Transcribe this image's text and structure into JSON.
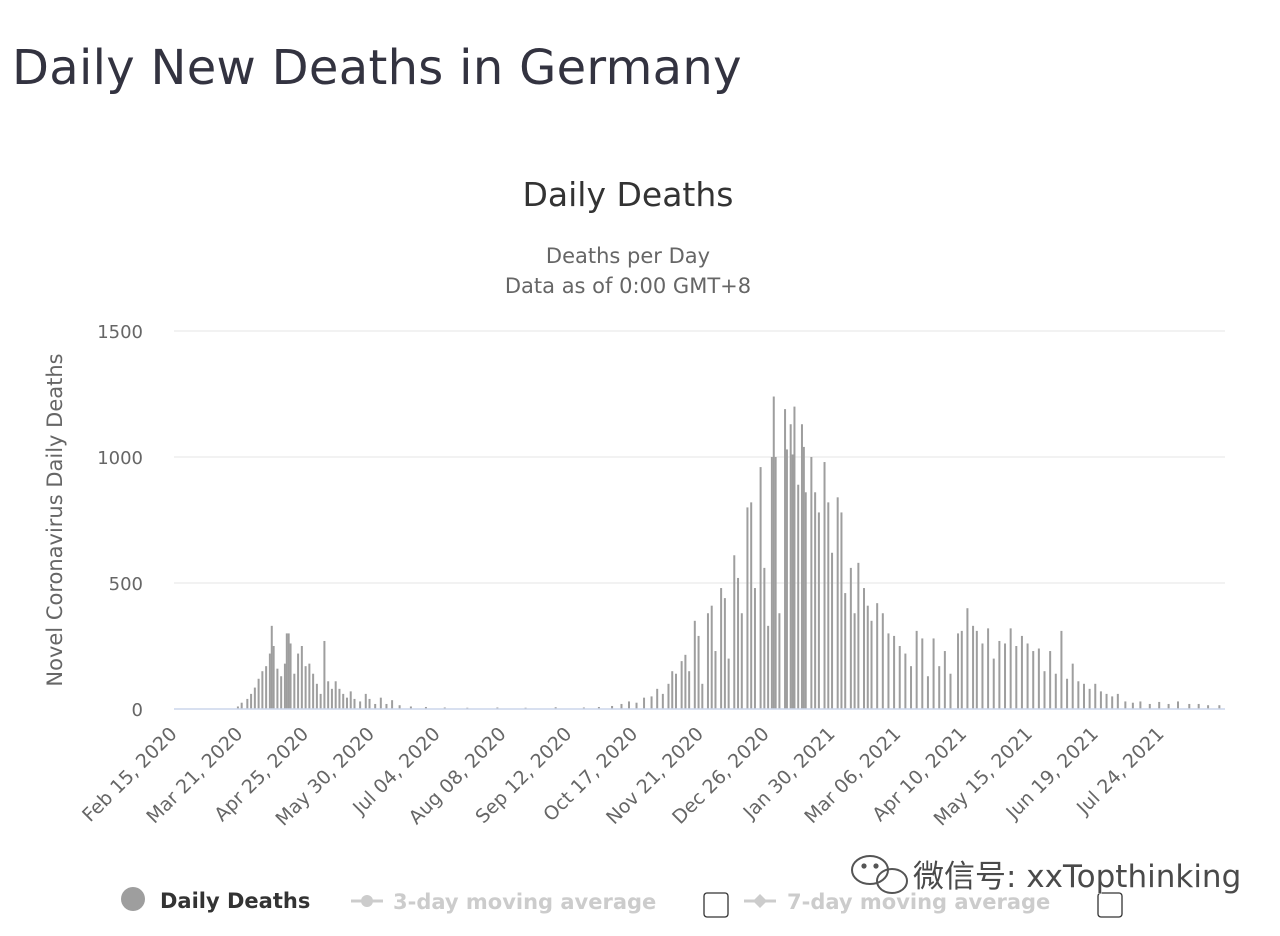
{
  "page": {
    "title": "Daily New Deaths in Germany"
  },
  "watermark": "微信号: xxTopthinking",
  "colors": {
    "bar": "#9e9e9e",
    "grid": "#e6e6e6",
    "axis": "#ccd6eb",
    "legend_inactive": "#cccccc",
    "legend_active": "#333333"
  },
  "chart_data": {
    "type": "bar",
    "title": "Daily Deaths",
    "subtitle_lines": [
      "Deaths per Day",
      "Data as of 0:00 GMT+8"
    ],
    "ylabel": "Novel Coronavirus Daily Deaths",
    "xlabel": "",
    "ylim": [
      0,
      1500
    ],
    "y_ticks": [
      "0",
      "500",
      "1000",
      "1500"
    ],
    "x_start": "2020-02-15",
    "x_end": "2021-08-27",
    "x_ticks": [
      "Feb 15, 2020",
      "Mar 21, 2020",
      "Apr 25, 2020",
      "May 30, 2020",
      "Jul 04, 2020",
      "Aug 08, 2020",
      "Sep 12, 2020",
      "Oct 17, 2020",
      "Nov 21, 2020",
      "Dec 26, 2020",
      "Jan 30, 2021",
      "Mar 06, 2021",
      "Apr 10, 2021",
      "May 15, 2021",
      "Jun 19, 2021",
      "Jul 24, 2021"
    ],
    "grid": true,
    "legend_position": "bottom-left",
    "series": [
      {
        "name": "Daily Deaths",
        "active": true,
        "points": [
          [
            "2020-03-20",
            10
          ],
          [
            "2020-03-22",
            25
          ],
          [
            "2020-03-25",
            40
          ],
          [
            "2020-03-27",
            60
          ],
          [
            "2020-03-29",
            85
          ],
          [
            "2020-03-31",
            120
          ],
          [
            "2020-04-02",
            150
          ],
          [
            "2020-04-04",
            170
          ],
          [
            "2020-04-06",
            220
          ],
          [
            "2020-04-07",
            330
          ],
          [
            "2020-04-08",
            250
          ],
          [
            "2020-04-10",
            160
          ],
          [
            "2020-04-12",
            130
          ],
          [
            "2020-04-14",
            180
          ],
          [
            "2020-04-15",
            300
          ],
          [
            "2020-04-16",
            300
          ],
          [
            "2020-04-17",
            260
          ],
          [
            "2020-04-19",
            140
          ],
          [
            "2020-04-21",
            220
          ],
          [
            "2020-04-23",
            250
          ],
          [
            "2020-04-25",
            170
          ],
          [
            "2020-04-27",
            180
          ],
          [
            "2020-04-29",
            140
          ],
          [
            "2020-05-01",
            100
          ],
          [
            "2020-05-03",
            60
          ],
          [
            "2020-05-05",
            270
          ],
          [
            "2020-05-07",
            110
          ],
          [
            "2020-05-09",
            80
          ],
          [
            "2020-05-11",
            110
          ],
          [
            "2020-05-13",
            80
          ],
          [
            "2020-05-15",
            60
          ],
          [
            "2020-05-17",
            45
          ],
          [
            "2020-05-19",
            70
          ],
          [
            "2020-05-21",
            40
          ],
          [
            "2020-05-24",
            30
          ],
          [
            "2020-05-27",
            60
          ],
          [
            "2020-05-29",
            40
          ],
          [
            "2020-06-01",
            20
          ],
          [
            "2020-06-04",
            45
          ],
          [
            "2020-06-07",
            20
          ],
          [
            "2020-06-10",
            35
          ],
          [
            "2020-06-14",
            15
          ],
          [
            "2020-06-20",
            10
          ],
          [
            "2020-06-28",
            8
          ],
          [
            "2020-07-08",
            6
          ],
          [
            "2020-07-20",
            5
          ],
          [
            "2020-08-05",
            6
          ],
          [
            "2020-08-20",
            5
          ],
          [
            "2020-09-05",
            7
          ],
          [
            "2020-09-20",
            6
          ],
          [
            "2020-09-28",
            8
          ],
          [
            "2020-10-05",
            12
          ],
          [
            "2020-10-10",
            20
          ],
          [
            "2020-10-14",
            30
          ],
          [
            "2020-10-18",
            25
          ],
          [
            "2020-10-22",
            45
          ],
          [
            "2020-10-26",
            50
          ],
          [
            "2020-10-29",
            80
          ],
          [
            "2020-11-01",
            60
          ],
          [
            "2020-11-04",
            100
          ],
          [
            "2020-11-06",
            150
          ],
          [
            "2020-11-08",
            140
          ],
          [
            "2020-11-11",
            190
          ],
          [
            "2020-11-13",
            215
          ],
          [
            "2020-11-15",
            150
          ],
          [
            "2020-11-18",
            350
          ],
          [
            "2020-11-20",
            290
          ],
          [
            "2020-11-22",
            100
          ],
          [
            "2020-11-25",
            380
          ],
          [
            "2020-11-27",
            410
          ],
          [
            "2020-11-29",
            230
          ],
          [
            "2020-12-02",
            480
          ],
          [
            "2020-12-04",
            440
          ],
          [
            "2020-12-06",
            200
          ],
          [
            "2020-12-09",
            610
          ],
          [
            "2020-12-11",
            520
          ],
          [
            "2020-12-13",
            380
          ],
          [
            "2020-12-16",
            800
          ],
          [
            "2020-12-18",
            820
          ],
          [
            "2020-12-20",
            480
          ],
          [
            "2020-12-23",
            960
          ],
          [
            "2020-12-25",
            560
          ],
          [
            "2020-12-27",
            330
          ],
          [
            "2020-12-29",
            1000
          ],
          [
            "2020-12-30",
            1240
          ],
          [
            "2020-12-31",
            1000
          ],
          [
            "2021-01-02",
            380
          ],
          [
            "2021-01-05",
            1190
          ],
          [
            "2021-01-06",
            1030
          ],
          [
            "2021-01-08",
            1130
          ],
          [
            "2021-01-09",
            1010
          ],
          [
            "2021-01-10",
            1200
          ],
          [
            "2021-01-12",
            890
          ],
          [
            "2021-01-14",
            1130
          ],
          [
            "2021-01-15",
            1040
          ],
          [
            "2021-01-16",
            860
          ],
          [
            "2021-01-19",
            1000
          ],
          [
            "2021-01-21",
            860
          ],
          [
            "2021-01-23",
            780
          ],
          [
            "2021-01-26",
            980
          ],
          [
            "2021-01-28",
            820
          ],
          [
            "2021-01-30",
            620
          ],
          [
            "2021-02-02",
            840
          ],
          [
            "2021-02-04",
            780
          ],
          [
            "2021-02-06",
            460
          ],
          [
            "2021-02-09",
            560
          ],
          [
            "2021-02-11",
            380
          ],
          [
            "2021-02-13",
            580
          ],
          [
            "2021-02-16",
            480
          ],
          [
            "2021-02-18",
            410
          ],
          [
            "2021-02-20",
            350
          ],
          [
            "2021-02-23",
            420
          ],
          [
            "2021-02-26",
            380
          ],
          [
            "2021-03-01",
            300
          ],
          [
            "2021-03-04",
            290
          ],
          [
            "2021-03-07",
            250
          ],
          [
            "2021-03-10",
            220
          ],
          [
            "2021-03-13",
            170
          ],
          [
            "2021-03-16",
            310
          ],
          [
            "2021-03-19",
            280
          ],
          [
            "2021-03-22",
            130
          ],
          [
            "2021-03-25",
            280
          ],
          [
            "2021-03-28",
            170
          ],
          [
            "2021-03-31",
            230
          ],
          [
            "2021-04-03",
            140
          ],
          [
            "2021-04-07",
            300
          ],
          [
            "2021-04-09",
            310
          ],
          [
            "2021-04-12",
            400
          ],
          [
            "2021-04-15",
            330
          ],
          [
            "2021-04-17",
            310
          ],
          [
            "2021-04-20",
            260
          ],
          [
            "2021-04-23",
            320
          ],
          [
            "2021-04-26",
            200
          ],
          [
            "2021-04-29",
            270
          ],
          [
            "2021-05-02",
            260
          ],
          [
            "2021-05-05",
            320
          ],
          [
            "2021-05-08",
            250
          ],
          [
            "2021-05-11",
            290
          ],
          [
            "2021-05-14",
            260
          ],
          [
            "2021-05-17",
            230
          ],
          [
            "2021-05-20",
            240
          ],
          [
            "2021-05-23",
            150
          ],
          [
            "2021-05-26",
            230
          ],
          [
            "2021-05-29",
            140
          ],
          [
            "2021-06-01",
            310
          ],
          [
            "2021-06-04",
            120
          ],
          [
            "2021-06-07",
            180
          ],
          [
            "2021-06-10",
            110
          ],
          [
            "2021-06-13",
            100
          ],
          [
            "2021-06-16",
            80
          ],
          [
            "2021-06-19",
            100
          ],
          [
            "2021-06-22",
            70
          ],
          [
            "2021-06-25",
            60
          ],
          [
            "2021-06-28",
            50
          ],
          [
            "2021-07-01",
            60
          ],
          [
            "2021-07-05",
            30
          ],
          [
            "2021-07-09",
            25
          ],
          [
            "2021-07-13",
            30
          ],
          [
            "2021-07-18",
            20
          ],
          [
            "2021-07-23",
            28
          ],
          [
            "2021-07-28",
            20
          ],
          [
            "2021-08-02",
            30
          ],
          [
            "2021-08-08",
            20
          ],
          [
            "2021-08-13",
            20
          ],
          [
            "2021-08-18",
            15
          ],
          [
            "2021-08-24",
            15
          ]
        ]
      },
      {
        "name": "3-day moving average",
        "active": false
      },
      {
        "name": "7-day moving average",
        "active": false
      }
    ]
  }
}
